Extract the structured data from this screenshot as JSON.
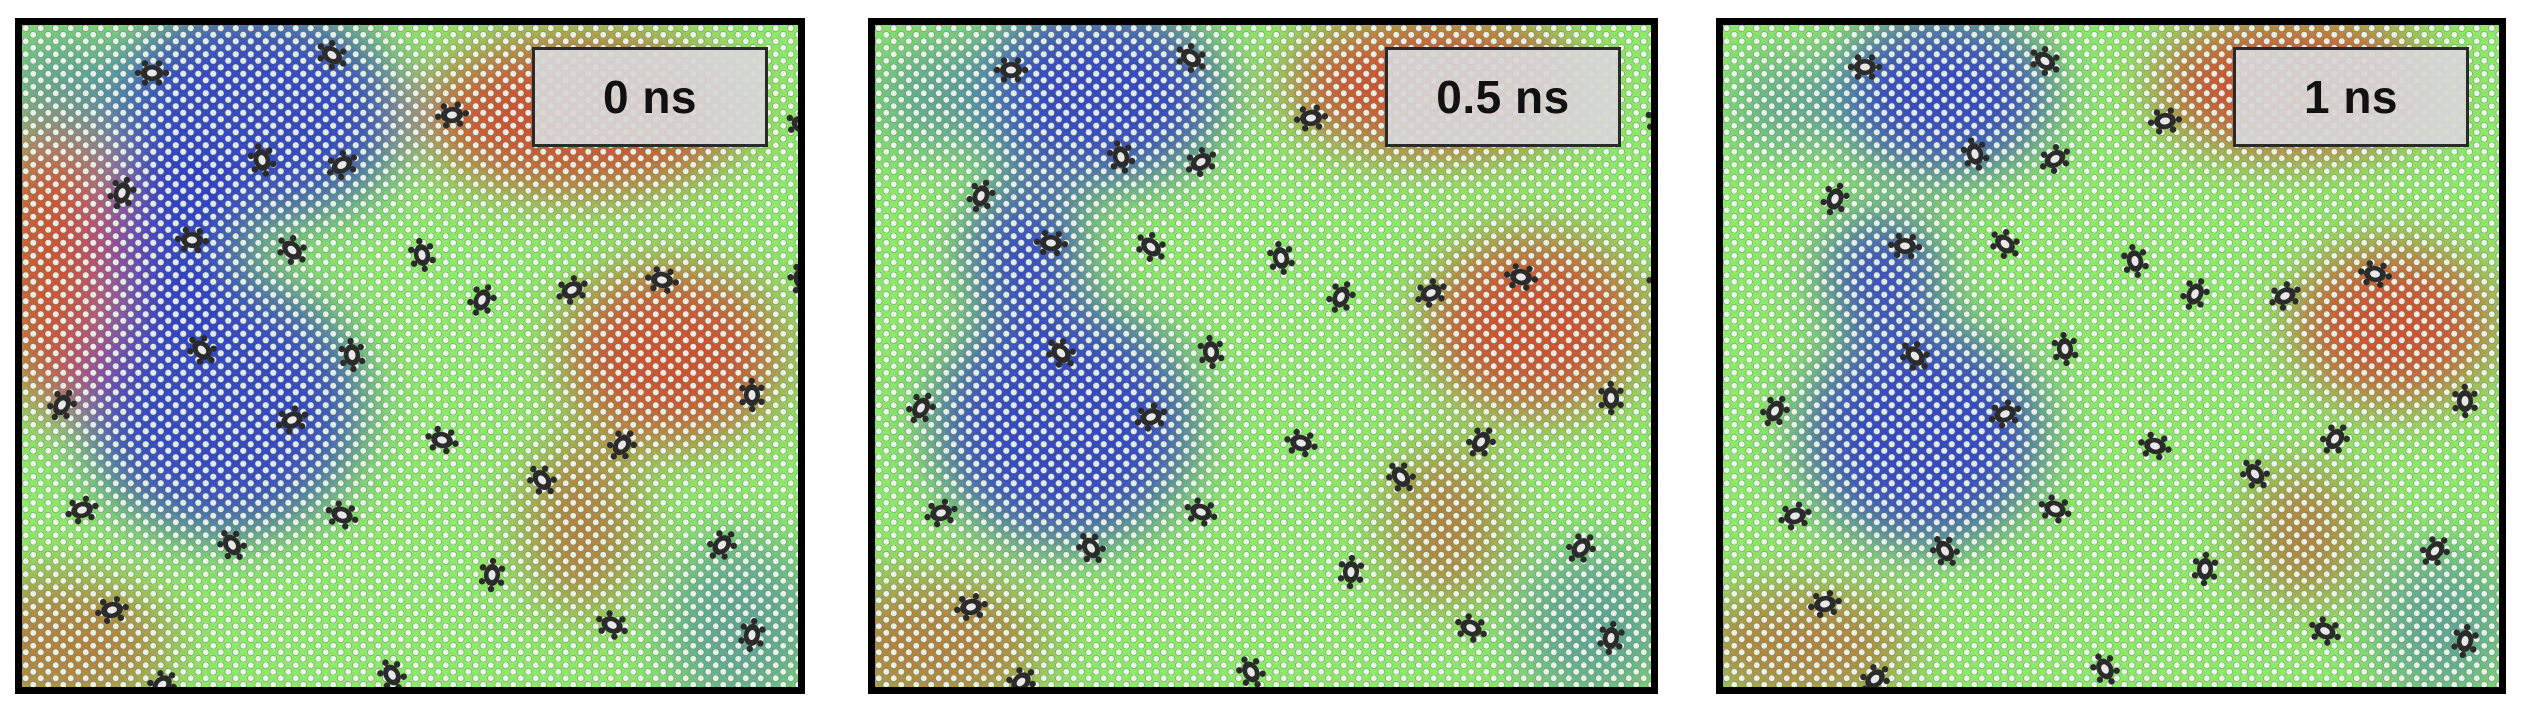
{
  "figure": {
    "panels": [
      {
        "time_label": "0 ns"
      },
      {
        "time_label": "0.5 ns"
      },
      {
        "time_label": "1 ns"
      }
    ],
    "colors": {
      "frame": "#000000",
      "lattice_green": "#8ee86a",
      "domain_blue": "#2a2fd0",
      "domain_red": "#d83a2a",
      "domain_orange": "#b8703a",
      "domain_teal": "#5a9a9a",
      "particle": "#2b2b2b",
      "label_box": "#d7d7d7"
    },
    "icons": {
      "lattice": "hexagonal-lattice-pattern",
      "particle": "dark-defect-particle-icon"
    }
  }
}
